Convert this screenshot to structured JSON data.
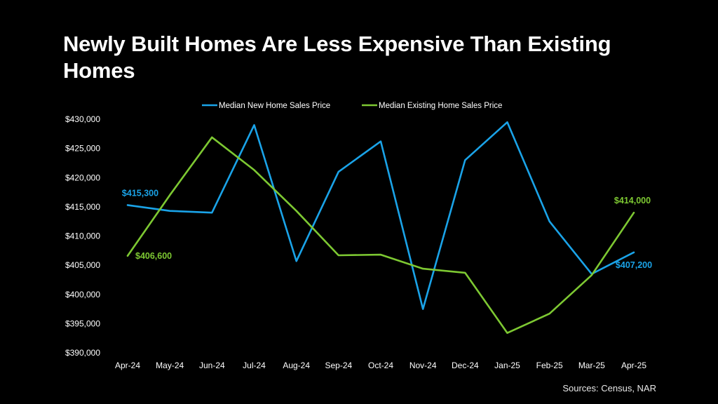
{
  "title": "Newly Built Homes Are Less Expensive Than Existing Homes",
  "source_note": "Sources: Census, NAR",
  "chart_data": {
    "type": "line",
    "categories": [
      "Apr-24",
      "May-24",
      "Jun-24",
      "Jul-24",
      "Aug-24",
      "Sep-24",
      "Oct-24",
      "Nov-24",
      "Dec-24",
      "Jan-25",
      "Feb-25",
      "Mar-25",
      "Apr-25"
    ],
    "series": [
      {
        "name": "Median New Home Sales Price",
        "color": "#1aa3e8",
        "values": [
          415300,
          414300,
          414000,
          429000,
          405700,
          421000,
          426200,
          397500,
          423000,
          429500,
          412500,
          403500,
          407200
        ]
      },
      {
        "name": "Median Existing Home Sales Price",
        "color": "#7dc832",
        "values": [
          406600,
          417000,
          426900,
          421300,
          414300,
          406700,
          406800,
          404400,
          403700,
          393400,
          396700,
          403300,
          414000
        ]
      }
    ],
    "y_ticks": [
      "$430,000",
      "$425,000",
      "$420,000",
      "$415,000",
      "$410,000",
      "$405,000",
      "$400,000",
      "$395,000",
      "$390,000"
    ],
    "ylim": [
      390000,
      430000
    ],
    "data_labels": [
      {
        "series": 0,
        "index": 0,
        "text": "$415,300"
      },
      {
        "series": 1,
        "index": 0,
        "text": "$406,600"
      },
      {
        "series": 1,
        "index": 12,
        "text": "$414,000"
      },
      {
        "series": 0,
        "index": 12,
        "text": "$407,200"
      }
    ],
    "legend_position": "top-center",
    "grid": false
  }
}
